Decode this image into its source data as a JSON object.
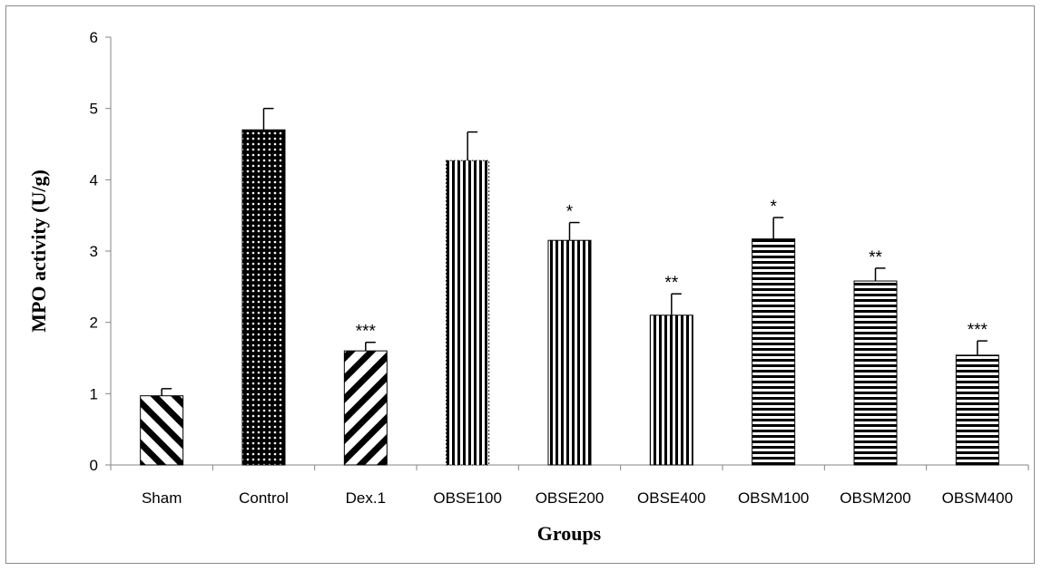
{
  "chart_data": {
    "type": "bar",
    "title": "",
    "xlabel": "Groups",
    "ylabel": "MPO activity (U/g)",
    "ylim": [
      0,
      6
    ],
    "yticks": [
      0,
      1,
      2,
      3,
      4,
      5,
      6
    ],
    "grid": false,
    "legend": "none",
    "categories": [
      "Sham",
      "Control",
      "Dex.1",
      "OBSE100",
      "OBSE200",
      "OBSE400",
      "OBSM100",
      "OBSM200",
      "OBSM400"
    ],
    "values": [
      0.97,
      4.7,
      1.6,
      4.27,
      3.15,
      2.1,
      3.17,
      2.58,
      1.54
    ],
    "errors": [
      0.1,
      0.3,
      0.12,
      0.4,
      0.25,
      0.3,
      0.3,
      0.18,
      0.2
    ],
    "significance": [
      "",
      "",
      "***",
      "",
      "*",
      "**",
      "*",
      "**",
      "***"
    ],
    "patterns": [
      "diag-down",
      "dots",
      "diag-up",
      "vertical",
      "vertical",
      "vertical",
      "horizontal",
      "horizontal",
      "horizontal"
    ]
  }
}
